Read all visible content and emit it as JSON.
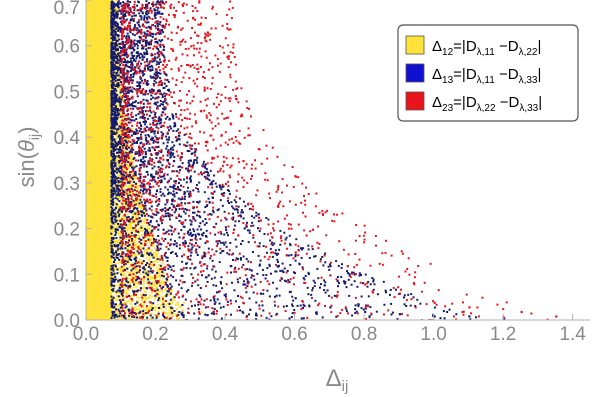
{
  "chart_data": {
    "type": "scatter",
    "title": "",
    "xlabel": {
      "main": "Δ",
      "sub": "ij"
    },
    "ylabel": {
      "pre": "sin(",
      "main": "θ",
      "sub": "ij",
      "post": ")"
    },
    "xlim": [
      0.0,
      1.45
    ],
    "ylim": [
      0.0,
      0.7
    ],
    "x_ticks": [
      "0.0",
      "0.2",
      "0.4",
      "0.6",
      "0.8",
      "1.0",
      "1.2",
      "1.4"
    ],
    "y_ticks": [
      "0.0",
      "0.1",
      "0.2",
      "0.3",
      "0.4",
      "0.5",
      "0.6",
      "0.7"
    ],
    "grid": false,
    "legend_position": "top-right",
    "series": [
      {
        "color": "#ffe23a",
        "legend": {
          "main": "Δ",
          "sub": "12",
          "eq": "=|D",
          "s1": "λ,11",
          "minus": " −D",
          "s2": "λ,22",
          "end": "|"
        },
        "shape": "dense band from Δ≈0 to Δ≈0.12, thinning out by Δ≈0.35",
        "points": [
          [
            0.01,
            0.05
          ],
          [
            0.02,
            0.35
          ],
          [
            0.03,
            0.62
          ],
          [
            0.05,
            0.2
          ],
          [
            0.06,
            0.48
          ],
          [
            0.08,
            0.1
          ],
          [
            0.09,
            0.55
          ],
          [
            0.1,
            0.3
          ],
          [
            0.12,
            0.15
          ],
          [
            0.13,
            0.42
          ],
          [
            0.15,
            0.25
          ],
          [
            0.17,
            0.05
          ],
          [
            0.19,
            0.18
          ],
          [
            0.21,
            0.08
          ],
          [
            0.24,
            0.12
          ],
          [
            0.28,
            0.04
          ],
          [
            0.33,
            0.02
          ]
        ]
      },
      {
        "color": "#141a6e",
        "legend": {
          "main": "Δ",
          "sub": "13",
          "eq": "=|D",
          "s1": "λ,11",
          "minus": " −D",
          "s2": "λ,33",
          "end": "|"
        },
        "shape": "band from Δ≈0.08 to Δ≈0.3 at high angle, tail reaching Δ≈1.2 near zero",
        "points": [
          [
            0.1,
            0.65
          ],
          [
            0.12,
            0.5
          ],
          [
            0.15,
            0.4
          ],
          [
            0.18,
            0.3
          ],
          [
            0.2,
            0.55
          ],
          [
            0.22,
            0.2
          ],
          [
            0.25,
            0.35
          ],
          [
            0.3,
            0.15
          ],
          [
            0.35,
            0.1
          ],
          [
            0.4,
            0.2
          ],
          [
            0.45,
            0.08
          ],
          [
            0.5,
            0.06
          ],
          [
            0.6,
            0.05
          ],
          [
            0.7,
            0.03
          ],
          [
            0.8,
            0.02
          ],
          [
            0.9,
            0.015
          ],
          [
            1.0,
            0.01
          ],
          [
            1.1,
            0.01
          ],
          [
            1.2,
            0.005
          ]
        ]
      },
      {
        "color": "#e8141b",
        "legend": {
          "main": "Δ",
          "sub": "23",
          "eq": "=|D",
          "s1": "λ,22",
          "minus": " −D",
          "s2": "λ,33",
          "end": "|"
        },
        "shape": "widest spread, sparse points reaching Δ≈0.75 at high angle and Δ≈1.35 near zero",
        "points": [
          [
            0.15,
            0.68
          ],
          [
            0.2,
            0.6
          ],
          [
            0.25,
            0.5
          ],
          [
            0.3,
            0.4
          ],
          [
            0.35,
            0.55
          ],
          [
            0.4,
            0.3
          ],
          [
            0.45,
            0.35
          ],
          [
            0.5,
            0.22
          ],
          [
            0.55,
            0.25
          ],
          [
            0.6,
            0.15
          ],
          [
            0.65,
            0.2
          ],
          [
            0.7,
            0.1
          ],
          [
            0.75,
            0.12
          ],
          [
            0.8,
            0.08
          ],
          [
            0.9,
            0.06
          ],
          [
            1.0,
            0.04
          ],
          [
            1.1,
            0.03
          ],
          [
            1.25,
            0.02
          ],
          [
            1.35,
            0.01
          ]
        ]
      }
    ]
  }
}
